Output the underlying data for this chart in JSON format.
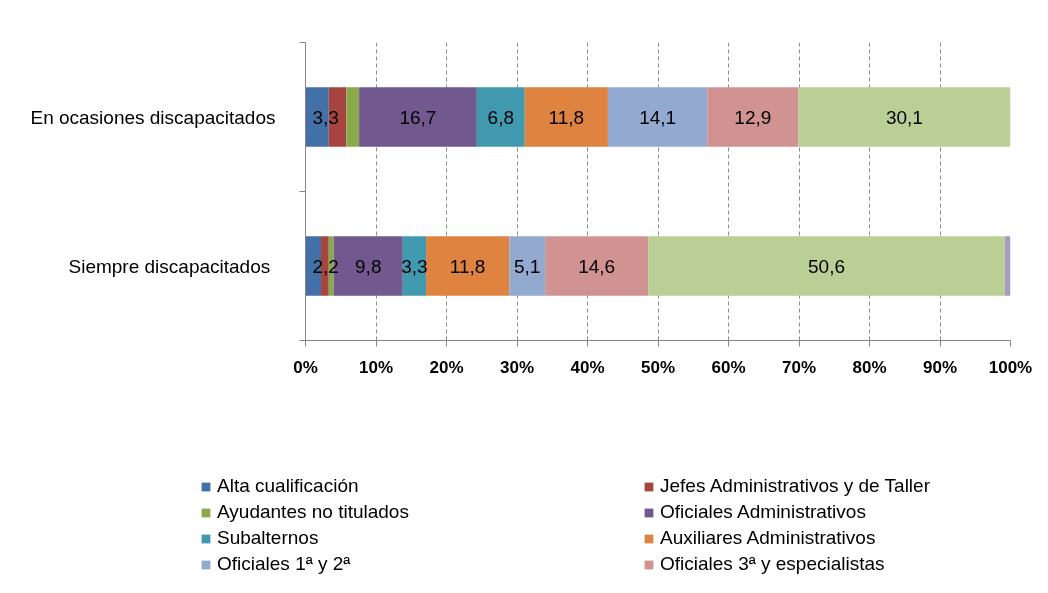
{
  "chart_data": {
    "type": "bar",
    "orientation": "horizontal",
    "stacked": true,
    "categories": [
      "En ocasiones discapacitados",
      "Siempre  discapacitados"
    ],
    "xlim": [
      0,
      100
    ],
    "xticks": [
      {
        "value": 0,
        "label": "0%"
      },
      {
        "value": 10,
        "label": "10%"
      },
      {
        "value": 20,
        "label": "20%"
      },
      {
        "value": 30,
        "label": "30%"
      },
      {
        "value": 40,
        "label": "40%"
      },
      {
        "value": 50,
        "label": "50%"
      },
      {
        "value": 60,
        "label": "60%"
      },
      {
        "value": 70,
        "label": "70%"
      },
      {
        "value": 80,
        "label": "80%"
      },
      {
        "value": 90,
        "label": "90%"
      },
      {
        "value": 100,
        "label": "100%"
      }
    ],
    "grid": "x",
    "legend": "bottom",
    "series": [
      {
        "name": "Alta cualificación",
        "color": "#4470a8",
        "values": [
          3.3,
          2.2
        ],
        "value_labels": [
          "3,3",
          "2,2"
        ]
      },
      {
        "name": "Jefes Administrativos y de Taller",
        "color": "#a64440",
        "values": [
          2.5,
          1.1
        ]
      },
      {
        "name": "Ayudantes no titulados",
        "color": "#8aa94b",
        "values": [
          1.8,
          0.7
        ]
      },
      {
        "name": "Oficiales Administrativos",
        "color": "#71588f",
        "values": [
          16.7,
          9.8
        ],
        "value_labels": [
          "16,7",
          "9,8"
        ]
      },
      {
        "name": "Subalternos",
        "color": "#4199b0",
        "values": [
          6.8,
          3.3
        ],
        "value_labels": [
          "6,8",
          "3,3"
        ]
      },
      {
        "name": "Auxiliares Administrativos",
        "color": "#de8440",
        "values": [
          11.8,
          11.8
        ],
        "value_labels": [
          "11,8",
          "11,8"
        ]
      },
      {
        "name": "Oficiales 1ª y 2ª",
        "color": "#93a9d0",
        "values": [
          14.1,
          5.1
        ],
        "value_labels": [
          "14,1",
          "5,1"
        ]
      },
      {
        "name": "Oficiales 3ª y especialistas",
        "color": "#d19392",
        "values": [
          12.9,
          14.6
        ],
        "value_labels": [
          "12,9",
          "14,6"
        ]
      },
      {
        "color": "#b9cf96",
        "values": [
          30.1,
          50.6
        ],
        "value_labels": [
          "30,1",
          "50,6"
        ]
      },
      {
        "color": "#a79bc0",
        "values": [
          null,
          0.8
        ]
      }
    ]
  }
}
